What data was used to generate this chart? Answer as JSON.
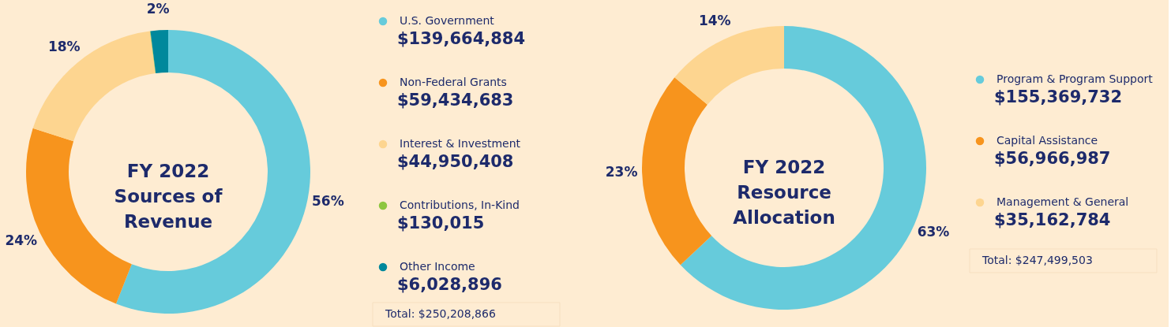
{
  "chart_data": [
    {
      "type": "donut",
      "title": "FY 2022\nSources of\nRevenue",
      "categories": [
        "U.S. Government",
        "Non-Federal Grants",
        "Interest & Investment",
        "Contributions, In-Kind",
        "Other Income"
      ],
      "values": [
        56,
        24,
        18,
        0.05,
        2
      ],
      "colors": [
        "#66cbdb",
        "#f7941d",
        "#fdd590",
        "#8dc63f",
        "#00889c"
      ],
      "value_labels": [
        "56%",
        "24%",
        "18%",
        null,
        "2%"
      ],
      "annotations": [
        "$139,664,884",
        "$59,434,683",
        "$44,950,408",
        "$130,015",
        "$6,028,896",
        "Total: $250,208,866"
      ],
      "legend": "right"
    },
    {
      "type": "donut",
      "title": "FY 2022\nResource\nAllocation",
      "categories": [
        "Program & Program Support",
        "Capital Assistance",
        "Management & General"
      ],
      "values": [
        63,
        23,
        14
      ],
      "colors": [
        "#66cbdb",
        "#f7941d",
        "#fdd590"
      ],
      "value_labels": [
        "63%",
        "23%",
        "14%"
      ],
      "annotations": [
        "$155,369,732",
        "$56,966,987",
        "$35,162,784",
        "Total: $247,499,503"
      ],
      "legend": "right"
    }
  ]
}
